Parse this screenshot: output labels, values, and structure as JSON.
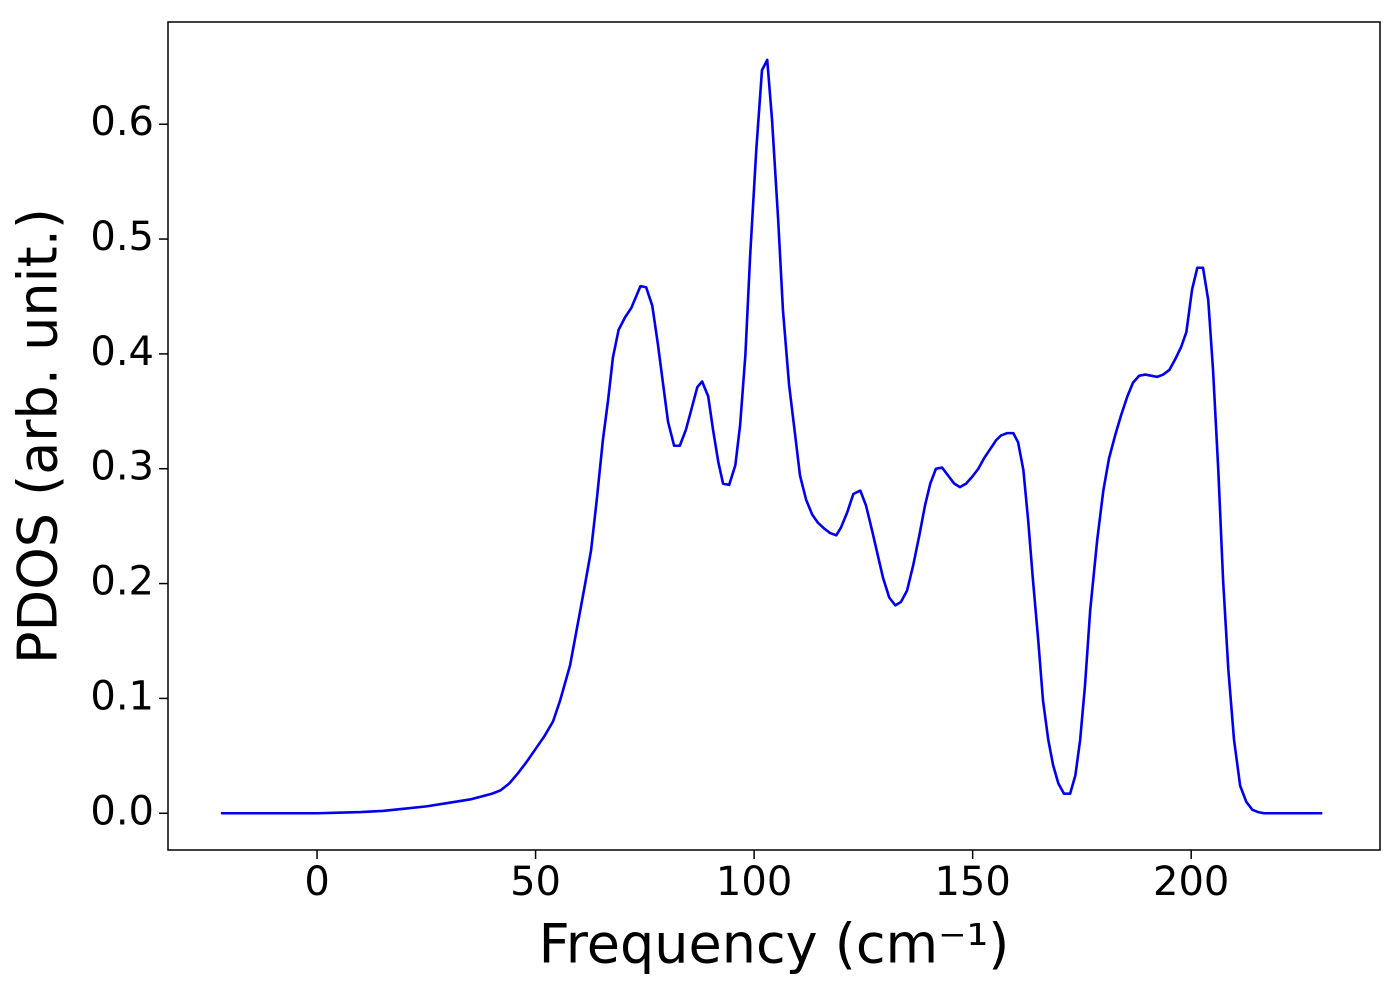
{
  "chart_data": {
    "type": "line",
    "xlabel": "Frequency (cm⁻¹)",
    "ylabel": "PDOS (arb. unit.)",
    "x": [
      -22,
      0,
      5,
      10,
      15,
      20,
      25,
      30,
      35,
      40,
      42,
      44,
      46,
      48,
      50,
      52,
      54,
      55.6,
      57.9,
      60,
      61.3,
      62.7,
      64,
      65.4,
      66.6,
      67.7,
      69,
      70.5,
      71.9,
      74,
      75.3,
      76.7,
      78,
      79.2,
      80.3,
      81.7,
      83,
      84.4,
      85.6,
      87,
      88.1,
      89.5,
      90.6,
      91.8,
      92.9,
      94.3,
      95.7,
      96.8,
      98,
      99.1,
      100.5,
      101.8,
      103,
      104.1,
      105.5,
      106.6,
      108,
      109.4,
      110.5,
      111.9,
      113.3,
      114.6,
      116,
      117.4,
      118.8,
      119.9,
      121.3,
      122.7,
      124.3,
      125.6,
      127,
      128.4,
      129.5,
      130.9,
      132.3,
      133.6,
      135,
      136.4,
      137.8,
      139.1,
      140.3,
      141.6,
      143,
      144.4,
      145.8,
      147.1,
      148.5,
      149.9,
      151.3,
      152.6,
      154,
      155.4,
      156.5,
      157.9,
      159.3,
      160.4,
      161.6,
      162.7,
      163.8,
      165,
      166.1,
      167.3,
      168.4,
      169.6,
      170.9,
      172.3,
      173.5,
      174.6,
      175.7,
      176.9,
      178.5,
      179.9,
      181.2,
      182.6,
      184,
      185.4,
      186.7,
      188.1,
      189.5,
      190.8,
      192.2,
      193.6,
      195,
      196.3,
      197.7,
      198.9,
      200.2,
      201.4,
      202.7,
      203.9,
      205,
      206.2,
      207.3,
      208.5,
      209.8,
      211.2,
      212.6,
      214,
      215.3,
      216.7,
      230
    ],
    "series": [
      {
        "name": "PDOS",
        "color": "#0000ee",
        "values": [
          0,
          0,
          0.0005,
          0.001,
          0.002,
          0.004,
          0.006,
          0.009,
          0.012,
          0.017,
          0.02,
          0.026,
          0.035,
          0.045,
          0.056,
          0.067,
          0.08,
          0.098,
          0.129,
          0.172,
          0.199,
          0.229,
          0.273,
          0.325,
          0.36,
          0.397,
          0.421,
          0.432,
          0.44,
          0.459,
          0.458,
          0.442,
          0.408,
          0.373,
          0.341,
          0.32,
          0.32,
          0.334,
          0.351,
          0.371,
          0.376,
          0.363,
          0.334,
          0.306,
          0.287,
          0.286,
          0.303,
          0.338,
          0.399,
          0.486,
          0.578,
          0.647,
          0.656,
          0.604,
          0.517,
          0.438,
          0.373,
          0.329,
          0.294,
          0.273,
          0.26,
          0.253,
          0.248,
          0.244,
          0.242,
          0.249,
          0.262,
          0.278,
          0.281,
          0.268,
          0.246,
          0.223,
          0.205,
          0.188,
          0.181,
          0.184,
          0.194,
          0.216,
          0.242,
          0.268,
          0.287,
          0.3,
          0.301,
          0.294,
          0.287,
          0.284,
          0.287,
          0.293,
          0.3,
          0.309,
          0.317,
          0.325,
          0.329,
          0.331,
          0.331,
          0.323,
          0.299,
          0.255,
          0.203,
          0.151,
          0.098,
          0.064,
          0.042,
          0.026,
          0.017,
          0.017,
          0.033,
          0.064,
          0.111,
          0.177,
          0.238,
          0.281,
          0.309,
          0.329,
          0.347,
          0.363,
          0.375,
          0.381,
          0.382,
          0.381,
          0.38,
          0.382,
          0.386,
          0.395,
          0.406,
          0.419,
          0.456,
          0.475,
          0.475,
          0.447,
          0.386,
          0.299,
          0.203,
          0.125,
          0.064,
          0.024,
          0.01,
          0.003,
          0.001,
          0,
          0
        ]
      }
    ],
    "xlim": [
      -34.1,
      243.2
    ],
    "ylim": [
      -0.032,
      0.689
    ],
    "xticks": [
      0,
      50,
      100,
      150,
      200
    ],
    "yticks": [
      {
        "value": 0,
        "label": "0.0"
      },
      0.1,
      0.2,
      0.3,
      0.4,
      0.5,
      0.6
    ],
    "grid": false
  }
}
